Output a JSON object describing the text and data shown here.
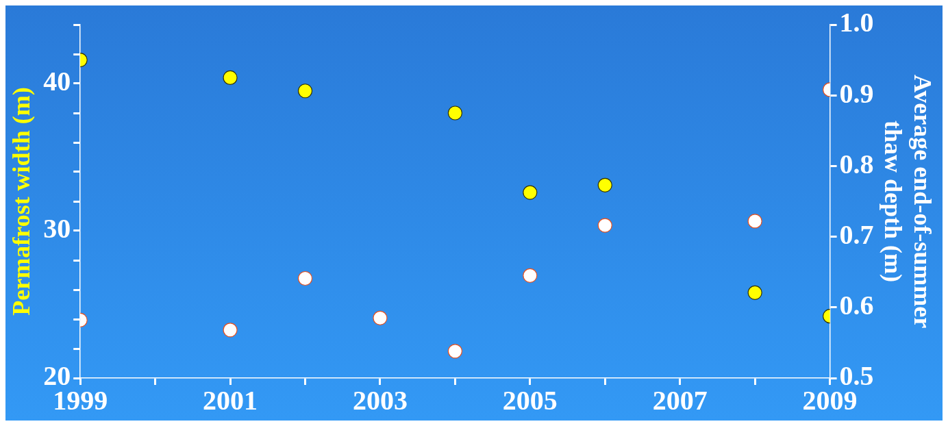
{
  "chart_data": {
    "type": "scatter",
    "ylabel": "Permafrost width (m)",
    "y2label": "Average end-of-summer thaw depth (m)",
    "x": [
      1999,
      2001,
      2002,
      2003,
      2004,
      2005,
      2006,
      2008,
      2009
    ],
    "xlim": [
      1999,
      2009
    ],
    "xticks": [
      1999,
      {
        "value": 2000,
        "label": null
      },
      2001,
      {
        "value": 2002,
        "label": null
      },
      2003,
      {
        "value": 2004,
        "label": null
      },
      2005,
      {
        "value": 2006,
        "label": null
      },
      2007,
      {
        "value": 2008,
        "label": null
      },
      2009
    ],
    "ylim": [
      20,
      44
    ],
    "yticks": [
      20,
      {
        "value": 22,
        "label": null
      },
      {
        "value": 24,
        "label": null
      },
      {
        "value": 26,
        "label": null
      },
      {
        "value": 28,
        "label": null
      },
      30,
      {
        "value": 32,
        "label": null
      },
      {
        "value": 34,
        "label": null
      },
      {
        "value": 36,
        "label": null
      },
      {
        "value": 38,
        "label": null
      },
      40,
      {
        "value": 42,
        "label": null
      },
      {
        "value": 44,
        "label": null
      }
    ],
    "y2lim": [
      0.5,
      1.0
    ],
    "y2ticks": [
      0.5,
      0.6,
      0.7,
      0.8,
      0.9,
      {
        "value": 1,
        "label": "1.0"
      }
    ],
    "marker": "circle",
    "series": [
      {
        "color": "#ffff00",
        "axis": "y",
        "values": [
          41.6,
          40.4,
          39.5,
          null,
          38.0,
          32.6,
          33.1,
          25.8,
          24.2
        ]
      },
      {
        "color": "#ffffff",
        "axis": "y2",
        "values": [
          0.582,
          0.568,
          0.641,
          0.585,
          0.538,
          0.645,
          0.716,
          0.722,
          0.908
        ]
      }
    ]
  }
}
